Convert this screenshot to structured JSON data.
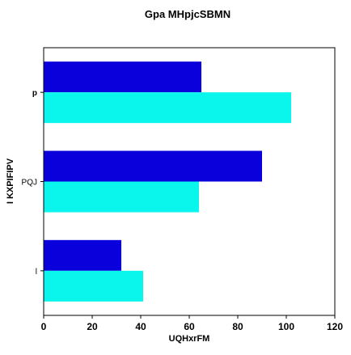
{
  "chart_data": {
    "type": "bar",
    "orientation": "horizontal",
    "title": "Gpa  MHpjcSBMN",
    "xlabel": "UQHxrFM",
    "ylabel": "I  KXPIFIPV",
    "categories": [
      "l",
      "PQJ",
      "p"
    ],
    "series": [
      {
        "color": "#0a00dc",
        "values": [
          32,
          90,
          65
        ]
      },
      {
        "color": "#0af5ec",
        "values": [
          41,
          64,
          102
        ]
      }
    ],
    "xlim": [
      0,
      120
    ],
    "xticks": [
      0,
      20,
      40,
      60,
      80,
      100,
      120
    ],
    "grid": false,
    "legend": "none"
  }
}
